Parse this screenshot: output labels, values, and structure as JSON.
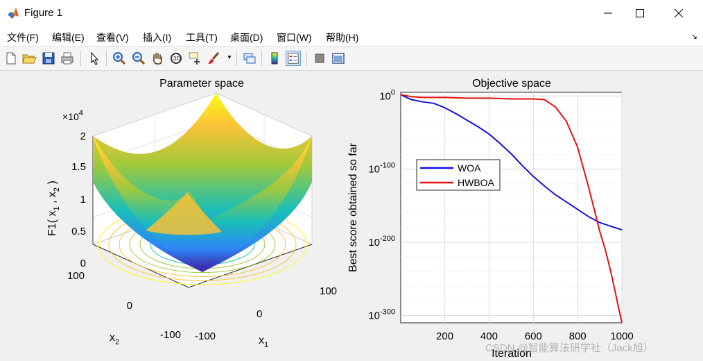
{
  "window": {
    "title": "Figure 1",
    "minimize_icon": "minimize-icon",
    "maximize_icon": "maximize-icon",
    "close_icon": "close-icon"
  },
  "menu": {
    "items": [
      "文件(F)",
      "编辑(E)",
      "查看(V)",
      "插入(I)",
      "工具(T)",
      "桌面(D)",
      "窗口(W)",
      "帮助(H)"
    ]
  },
  "toolbar": {
    "icons": [
      "new-figure-icon",
      "open-file-icon",
      "save-icon",
      "print-icon",
      "pointer-icon",
      "zoom-in-icon",
      "zoom-out-icon",
      "pan-hand-icon",
      "rotate-3d-icon",
      "data-cursor-icon",
      "brush-icon",
      "link-plot-icon",
      "colorbar-icon",
      "legend-icon",
      "hide-plot-tools-icon",
      "show-plot-tools-icon"
    ]
  },
  "chart_data": [
    {
      "type": "surface",
      "title": "Parameter space",
      "zlabel_prefix": "F1( x",
      "xlabel": "x",
      "xlabel_sub": "1",
      "ylabel": "x",
      "ylabel_sub": "2",
      "zlabel_sub1": "1",
      "zlabel_sep": " , x",
      "zlabel_sub2": "2",
      "zlabel_suffix": " )",
      "exponent_prefix": "×10",
      "exponent": "4",
      "z_ticks": [
        "0",
        "0.5",
        "1",
        "1.5",
        "2"
      ],
      "x_ticks": [
        "-100",
        "0",
        "100"
      ],
      "y_ticks": [
        "-100",
        "0",
        "100"
      ],
      "function": "x1^2 + x2^2",
      "xlim": [
        -100,
        100
      ],
      "ylim": [
        -100,
        100
      ],
      "zlim": [
        0,
        20000
      ],
      "colormap": [
        "#3e26a8",
        "#2e87f7",
        "#19bfb7",
        "#a2c93a",
        "#fcc338",
        "#f9fb15"
      ],
      "contours": true,
      "grid": true
    },
    {
      "type": "line",
      "title": "Objective space",
      "xlabel": "Iteration",
      "ylabel": "Best score obtained so far",
      "x_ticks": [
        "200",
        "400",
        "600",
        "800",
        "1000"
      ],
      "xlim": [
        1,
        1000
      ],
      "y_scale": "log",
      "y_ticks": [
        {
          "base": "10",
          "exp": "0"
        },
        {
          "base": "10",
          "exp": "-100"
        },
        {
          "base": "10",
          "exp": "-200"
        },
        {
          "base": "10",
          "exp": "-300"
        }
      ],
      "ylim_exponent": [
        -310,
        5
      ],
      "grid": true,
      "legend_position": "left",
      "series": [
        {
          "name": "WOA",
          "color": "#1010e6",
          "x": [
            1,
            20,
            50,
            100,
            150,
            200,
            250,
            300,
            350,
            400,
            450,
            500,
            550,
            600,
            650,
            700,
            750,
            800,
            850,
            900,
            950,
            1000
          ],
          "log10_y": [
            2,
            -1,
            -5,
            -8,
            -10,
            -16,
            -24,
            -33,
            -42,
            -52,
            -65,
            -79,
            -95,
            -110,
            -123,
            -135,
            -145,
            -155,
            -165,
            -173,
            -178,
            -183
          ]
        },
        {
          "name": "HWBOA",
          "color": "#e61010",
          "x": [
            1,
            50,
            100,
            200,
            300,
            400,
            500,
            600,
            650,
            700,
            750,
            800,
            850,
            900,
            925,
            950,
            975,
            1000
          ],
          "log10_y": [
            2,
            -1,
            -2,
            -2,
            -3,
            -3,
            -4,
            -4,
            -5,
            -15,
            -35,
            -70,
            -125,
            -185,
            -210,
            -240,
            -275,
            -310
          ]
        }
      ]
    }
  ],
  "watermark": "CSDN @智能算法研学社（Jack旭）"
}
